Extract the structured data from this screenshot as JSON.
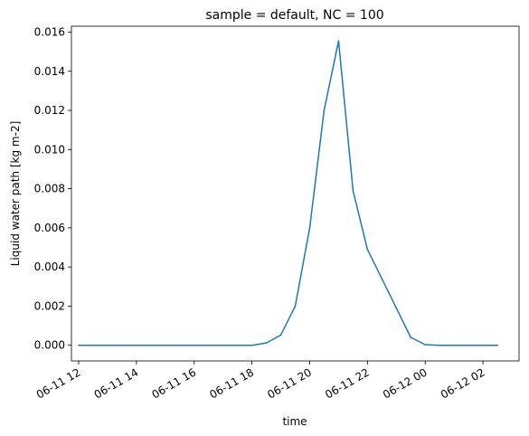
{
  "chart_data": {
    "type": "line",
    "title": "sample = default, NC = 100",
    "xlabel": "time",
    "ylabel": "Liquid water path [kg m-2]",
    "grid": false,
    "color": "#1f77b4",
    "xlim": [
      "2021-06-11T11:45",
      "2021-06-12T03:15"
    ],
    "ylim": [
      -0.0008,
      0.0163
    ],
    "x_ticks": [
      {
        "value": "2021-06-11T12:00",
        "label": "06-11 12"
      },
      {
        "value": "2021-06-11T14:00",
        "label": "06-11 14"
      },
      {
        "value": "2021-06-11T16:00",
        "label": "06-11 16"
      },
      {
        "value": "2021-06-11T18:00",
        "label": "06-11 18"
      },
      {
        "value": "2021-06-11T20:00",
        "label": "06-11 20"
      },
      {
        "value": "2021-06-11T22:00",
        "label": "06-11 22"
      },
      {
        "value": "2021-06-12T00:00",
        "label": "06-12 00"
      },
      {
        "value": "2021-06-12T02:00",
        "label": "06-12 02"
      }
    ],
    "y_ticks": [
      {
        "value": 0.0,
        "label": "0.000"
      },
      {
        "value": 0.002,
        "label": "0.002"
      },
      {
        "value": 0.004,
        "label": "0.004"
      },
      {
        "value": 0.006,
        "label": "0.006"
      },
      {
        "value": 0.008,
        "label": "0.008"
      },
      {
        "value": 0.01,
        "label": "0.010"
      },
      {
        "value": 0.012,
        "label": "0.012"
      },
      {
        "value": 0.014,
        "label": "0.014"
      },
      {
        "value": 0.016,
        "label": "0.016"
      }
    ],
    "series": [
      {
        "x": [
          "2021-06-11T12:00",
          "2021-06-11T12:30",
          "2021-06-11T13:00",
          "2021-06-11T13:30",
          "2021-06-11T14:00",
          "2021-06-11T14:30",
          "2021-06-11T15:00",
          "2021-06-11T15:30",
          "2021-06-11T16:00",
          "2021-06-11T16:30",
          "2021-06-11T17:00",
          "2021-06-11T17:30",
          "2021-06-11T18:00",
          "2021-06-11T18:30",
          "2021-06-11T19:00",
          "2021-06-11T19:30",
          "2021-06-11T20:00",
          "2021-06-11T20:30",
          "2021-06-11T21:00",
          "2021-06-11T21:30",
          "2021-06-11T22:00",
          "2021-06-11T22:30",
          "2021-06-11T23:00",
          "2021-06-11T23:30",
          "2021-06-12T00:00",
          "2021-06-12T00:30",
          "2021-06-12T01:00",
          "2021-06-12T01:30",
          "2021-06-12T02:00",
          "2021-06-12T02:30"
        ],
        "y": [
          0.0,
          0.0,
          0.0,
          0.0,
          0.0,
          0.0,
          0.0,
          0.0,
          0.0,
          0.0,
          0.0,
          0.0,
          0.0,
          0.00012,
          0.00052,
          0.002,
          0.006,
          0.012,
          0.01555,
          0.0079,
          0.0049,
          0.0034,
          0.0019,
          0.0004,
          3e-05,
          0.0,
          0.0,
          0.0,
          0.0,
          0.0
        ]
      }
    ]
  }
}
